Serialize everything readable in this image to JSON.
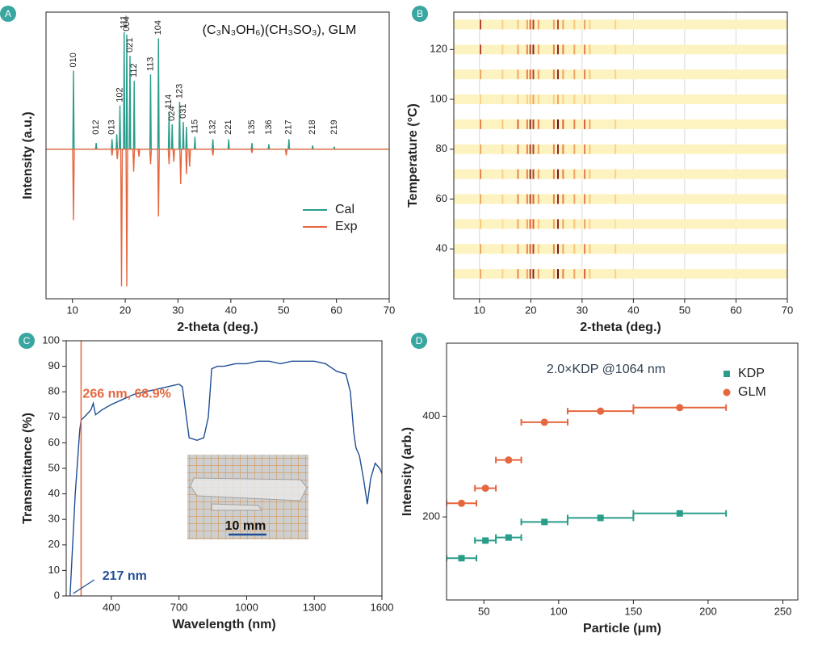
{
  "chart_data": [
    {
      "panel_label": "A",
      "type": "line",
      "title": "(C₃N₃OH₆)(CH₃SO₃), GLM",
      "xlabel": "2-theta (deg.)",
      "ylabel": "Intensity (a.u.)",
      "xlim": [
        5,
        70
      ],
      "xticks": [
        10,
        20,
        30,
        40,
        50,
        60,
        70
      ],
      "ylim": [
        -120,
        110
      ],
      "legend": "center right",
      "series": [
        {
          "name": "Cal",
          "color": "#2a9d8a",
          "x": [
            5,
            10.08,
            10.2,
            10.32,
            14.38,
            14.5,
            14.62,
            17.38,
            17.5,
            17.62,
            18.28,
            18.4,
            18.52,
            18.88,
            19,
            19.12,
            19.68,
            19.8,
            19.92,
            20.18,
            20.3,
            20.42,
            20.78,
            20.9,
            21.02,
            21.58,
            21.7,
            21.82,
            24.68,
            24.8,
            24.92,
            26.18,
            26.3,
            26.42,
            28.18,
            28.3,
            28.42,
            28.78,
            28.9,
            29.02,
            30.18,
            30.3,
            30.42,
            30.88,
            31,
            31.12,
            31.48,
            31.6,
            31.72,
            33.08,
            33.2,
            33.32,
            36.48,
            36.6,
            36.72,
            39.48,
            39.6,
            39.72,
            43.88,
            44,
            44.12,
            47.08,
            47.2,
            47.32,
            50.88,
            51,
            51.12,
            55.38,
            55.5,
            55.62,
            59.48,
            59.6,
            59.72,
            70
          ],
          "values": [
            0,
            0,
            63,
            0,
            0,
            5,
            0,
            0,
            8,
            0,
            0,
            12,
            0,
            0,
            35,
            0,
            0,
            94,
            0,
            0,
            92,
            0,
            0,
            75,
            0,
            0,
            55,
            0,
            0,
            60,
            0,
            0,
            89,
            0,
            0,
            30,
            0,
            0,
            20,
            0,
            0,
            38,
            0,
            0,
            22,
            0,
            0,
            18,
            0,
            0,
            10,
            0,
            0,
            8,
            0,
            0,
            8,
            0,
            0,
            5,
            0,
            0,
            4,
            0,
            0,
            8,
            0,
            0,
            3,
            0,
            0,
            2,
            0,
            0
          ]
        },
        {
          "name": "Exp",
          "color": "#e5673f",
          "x": [
            5,
            10.05,
            10.2,
            10.35,
            17.35,
            17.5,
            17.65,
            18.35,
            18.5,
            18.65,
            19.15,
            19.3,
            19.45,
            20.15,
            20.3,
            20.45,
            21.45,
            21.6,
            21.75,
            22.45,
            22.6,
            22.75,
            24.65,
            24.8,
            24.95,
            26.15,
            26.3,
            26.45,
            28.15,
            28.3,
            28.45,
            29.05,
            29.2,
            29.35,
            30.35,
            30.5,
            30.65,
            31.45,
            31.6,
            31.75,
            32.05,
            32.2,
            32.35,
            36.45,
            36.6,
            36.75,
            43.85,
            44,
            44.15,
            50.35,
            50.5,
            50.65,
            70
          ],
          "values": [
            0,
            0,
            -57,
            0,
            0,
            -5,
            0,
            0,
            -8,
            0,
            0,
            -110,
            0,
            0,
            -110,
            0,
            0,
            -18,
            0,
            0,
            -6,
            0,
            0,
            -12,
            0,
            0,
            -54,
            0,
            0,
            -12,
            0,
            0,
            -10,
            0,
            0,
            -28,
            0,
            0,
            -20,
            0,
            0,
            -14,
            0,
            0,
            -5,
            0,
            0,
            -3,
            0,
            0,
            -5,
            0,
            0
          ]
        }
      ],
      "peak_labels": [
        {
          "text": "010",
          "x": 10.2
        },
        {
          "text": "012",
          "x": 14.5
        },
        {
          "text": "013",
          "x": 17.5
        },
        {
          "text": "102",
          "x": 19.0
        },
        {
          "text": "111",
          "x": 19.8
        },
        {
          "text": "004",
          "x": 20.3
        },
        {
          "text": "021",
          "x": 20.9
        },
        {
          "text": "112",
          "x": 21.7
        },
        {
          "text": "113",
          "x": 24.8
        },
        {
          "text": "104",
          "x": 26.3
        },
        {
          "text": "114",
          "x": 28.3
        },
        {
          "text": "024",
          "x": 28.9
        },
        {
          "text": "123",
          "x": 30.3
        },
        {
          "text": "031",
          "x": 31.0
        },
        {
          "text": "115",
          "x": 33.2
        },
        {
          "text": "132",
          "x": 36.6
        },
        {
          "text": "221",
          "x": 39.6
        },
        {
          "text": "135",
          "x": 44.0
        },
        {
          "text": "136",
          "x": 47.2
        },
        {
          "text": "217",
          "x": 51.0
        },
        {
          "text": "218",
          "x": 55.5
        },
        {
          "text": "219",
          "x": 59.6
        }
      ]
    },
    {
      "panel_label": "B",
      "type": "heatmap",
      "xlabel": "2-theta (deg.)",
      "ylabel": "Temperature (°C)",
      "xlim": [
        5,
        70
      ],
      "xticks": [
        10,
        20,
        30,
        40,
        50,
        60,
        70
      ],
      "ylim": [
        20,
        135
      ],
      "yticks": [
        40,
        60,
        80,
        100,
        120
      ],
      "grid": true,
      "x": [
        10.2,
        14.5,
        17.5,
        19.3,
        19.9,
        20.5,
        21.5,
        24.5,
        25.3,
        26.3,
        28.5,
        30.5,
        31.5,
        36.5
      ],
      "y": [
        30,
        40,
        50,
        60,
        70,
        80,
        90,
        100,
        110,
        120,
        130
      ],
      "z": [
        [
          0.5,
          0.3,
          0.6,
          0.5,
          0.8,
          0.9,
          0.5,
          0.5,
          1.0,
          0.6,
          0.5,
          0.7,
          0.4,
          0.3
        ],
        [
          0.5,
          0.3,
          0.5,
          0.6,
          0.7,
          0.8,
          0.4,
          0.6,
          0.95,
          0.5,
          0.4,
          0.6,
          0.4,
          0.3
        ],
        [
          0.4,
          0.2,
          0.5,
          0.5,
          0.7,
          0.7,
          0.4,
          0.5,
          0.9,
          0.5,
          0.4,
          0.5,
          0.3,
          0.2
        ],
        [
          0.5,
          0.3,
          0.6,
          0.6,
          0.8,
          0.7,
          0.5,
          0.6,
          0.9,
          0.6,
          0.5,
          0.6,
          0.4,
          0.3
        ],
        [
          0.6,
          0.3,
          0.6,
          0.6,
          0.9,
          0.8,
          0.5,
          0.6,
          0.95,
          0.6,
          0.5,
          0.6,
          0.4,
          0.3
        ],
        [
          0.5,
          0.3,
          0.6,
          0.6,
          0.8,
          0.8,
          0.5,
          0.6,
          0.9,
          0.6,
          0.5,
          0.6,
          0.4,
          0.3
        ],
        [
          0.6,
          0.4,
          0.7,
          0.6,
          0.9,
          0.8,
          0.6,
          0.7,
          1.0,
          0.7,
          0.6,
          0.7,
          0.5,
          0.3
        ],
        [
          0.3,
          0.2,
          0.3,
          0.3,
          0.4,
          0.5,
          0.3,
          0.3,
          0.5,
          0.3,
          0.3,
          0.3,
          0.2,
          0.2
        ],
        [
          0.5,
          0.3,
          0.5,
          0.6,
          0.7,
          0.8,
          0.5,
          0.6,
          0.9,
          0.5,
          0.5,
          0.6,
          0.4,
          0.3
        ],
        [
          0.8,
          0.3,
          0.5,
          0.6,
          0.8,
          0.9,
          0.5,
          0.6,
          0.9,
          0.6,
          0.5,
          0.6,
          0.4,
          0.3
        ],
        [
          0.8,
          0.3,
          0.4,
          0.5,
          0.7,
          0.8,
          0.5,
          0.5,
          0.8,
          0.5,
          0.4,
          0.5,
          0.3,
          0.3
        ]
      ]
    },
    {
      "panel_label": "C",
      "type": "line",
      "xlabel": "Wavelength (nm)",
      "ylabel": "Transmittance (%)",
      "xlim": [
        200,
        1600
      ],
      "xticks": [
        400,
        700,
        1000,
        1300,
        1600
      ],
      "ylim": [
        0,
        100
      ],
      "yticks": [
        0,
        10,
        20,
        30,
        40,
        50,
        60,
        70,
        80,
        90,
        100
      ],
      "series": [
        {
          "color": "#1f4e96",
          "x": [
            217,
            240,
            260,
            266,
            290,
            310,
            320,
            330,
            360,
            400,
            450,
            500,
            550,
            600,
            650,
            700,
            715,
            730,
            745,
            780,
            810,
            830,
            845,
            870,
            900,
            950,
            1000,
            1050,
            1100,
            1150,
            1200,
            1250,
            1300,
            1350,
            1400,
            1440,
            1460,
            1475,
            1485,
            1500,
            1520,
            1535,
            1550,
            1570,
            1590,
            1600
          ],
          "values": [
            0,
            40,
            65,
            68.9,
            71,
            73,
            75.5,
            71,
            73,
            75,
            77,
            79,
            80,
            81,
            82,
            83,
            82,
            72,
            62,
            61,
            62,
            70,
            89,
            90,
            90,
            91,
            91,
            92,
            92,
            91,
            92,
            92,
            92,
            91,
            88,
            87,
            80,
            64,
            58,
            55,
            45,
            36,
            46,
            52,
            50,
            48
          ]
        }
      ],
      "marker_line": {
        "x": 266,
        "color": "#e5673f"
      },
      "annotations": [
        {
          "text": "266 nm, 68.9%",
          "x": 266,
          "y": 68.9,
          "color": "#e5673f"
        },
        {
          "text": "217 nm",
          "x": 217,
          "y": 0,
          "color": "#1f4e96"
        }
      ],
      "inset_label": "10 mm"
    },
    {
      "panel_label": "D",
      "type": "scatter",
      "xlabel": "Particle (μm)",
      "ylabel": "Intensity (arb.)",
      "xlim": [
        25,
        260
      ],
      "xticks": [
        50,
        100,
        150,
        200,
        250
      ],
      "ylim": [
        35,
        545
      ],
      "yticks": [
        200,
        400
      ],
      "legend": "upper right",
      "annotation": "2.0×KDP @1064 nm",
      "x": [
        35,
        51,
        66.5,
        90.5,
        128,
        181
      ],
      "xerr": [
        10,
        7,
        8.5,
        15.5,
        22,
        31
      ],
      "series": [
        {
          "name": "KDP",
          "color": "#2a9d8a",
          "marker": "square",
          "values": [
            118,
            153,
            159,
            190,
            198,
            207
          ]
        },
        {
          "name": "GLM",
          "color": "#e5673f",
          "marker": "circle",
          "values": [
            227,
            257,
            313,
            388,
            410,
            417
          ]
        }
      ]
    }
  ]
}
